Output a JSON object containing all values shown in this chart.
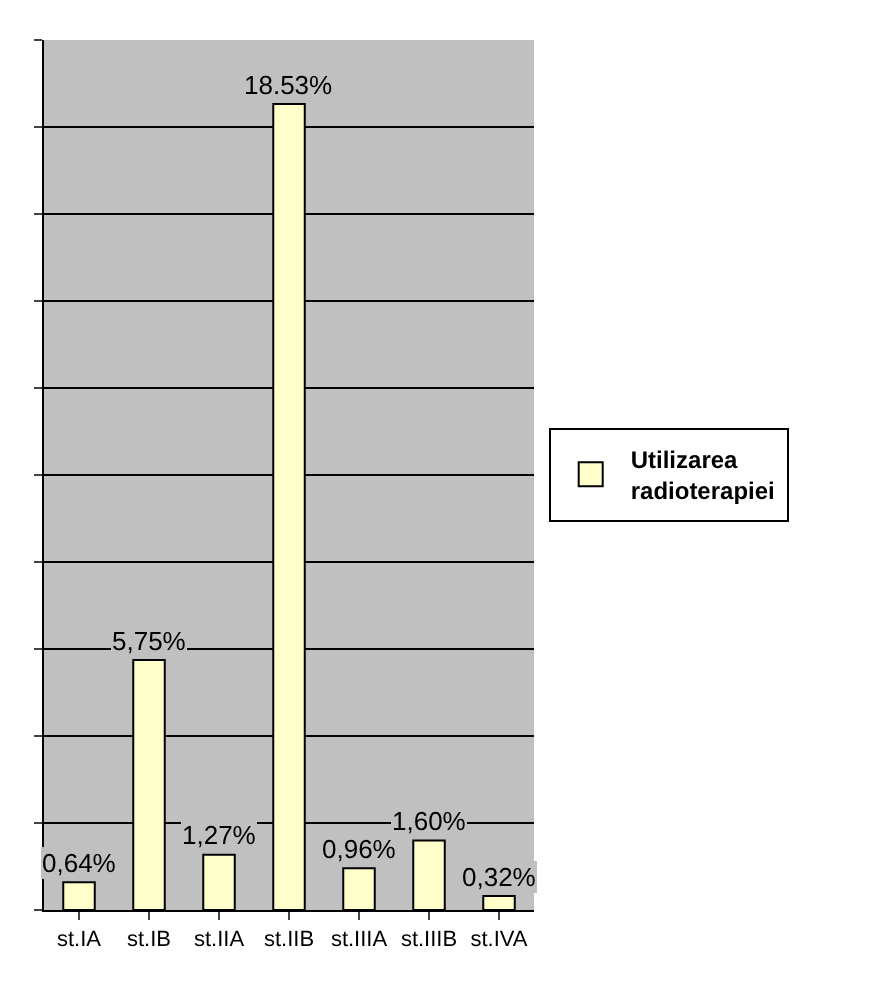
{
  "chart_data": {
    "type": "bar",
    "categories": [
      "st.IA",
      "st.IB",
      "st.IIA",
      "st.IIB",
      "st.IIIA",
      "st.IIIB",
      "st.IVA"
    ],
    "series": [
      {
        "name": "Utilizarea radioterapiei",
        "color": "#ffffcc",
        "values": [
          0.64,
          5.75,
          1.27,
          18.53,
          0.96,
          1.6,
          0.32
        ],
        "value_labels": [
          "0,64%",
          "5,75%",
          "1,27%",
          "18.53%",
          "0,96%",
          "1,60%",
          "0,32%"
        ]
      }
    ],
    "ylim": [
      0,
      20
    ],
    "yticks": [
      {
        "value": 0,
        "label": null
      },
      {
        "value": 2,
        "label": null
      },
      {
        "value": 4,
        "label": null
      },
      {
        "value": 6,
        "label": null
      },
      {
        "value": 8,
        "label": null
      },
      {
        "value": 10,
        "label": null
      },
      {
        "value": 12,
        "label": null
      },
      {
        "value": 14,
        "label": null
      },
      {
        "value": 16,
        "label": null
      },
      {
        "value": 18,
        "label": null
      },
      {
        "value": 20,
        "label": null
      }
    ],
    "grid": "y",
    "legend": "right",
    "tick_labels": "x"
  }
}
